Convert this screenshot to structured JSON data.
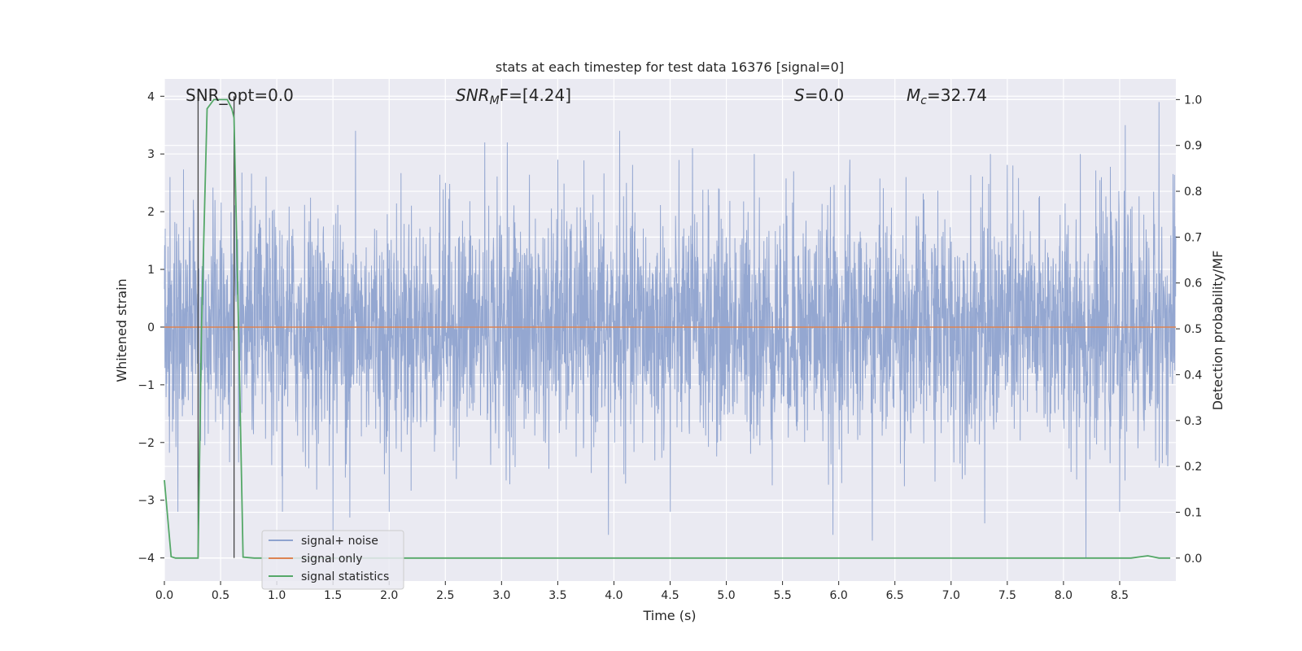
{
  "chart_data": {
    "type": "line",
    "title": "stats at each timestep for test data 16376 [signal=0]",
    "xlabel": "Time (s)",
    "ylabel_left": "Whitened strain",
    "ylabel_right": "Detection probability/MF",
    "xlim": [
      0.0,
      9.0
    ],
    "ylim_left": [
      -4.4,
      4.3
    ],
    "ylim_right": [
      -0.05,
      1.045
    ],
    "x_ticks": [
      "0.0",
      "0.5",
      "1.0",
      "1.5",
      "2.0",
      "2.5",
      "3.0",
      "3.5",
      "4.0",
      "4.5",
      "5.0",
      "5.5",
      "6.0",
      "6.5",
      "7.0",
      "7.5",
      "8.0",
      "8.5"
    ],
    "y_ticks_left": [
      "4",
      "3",
      "2",
      "1",
      "0",
      "−1",
      "−2",
      "−3",
      "−4"
    ],
    "y_ticks_right": [
      "1.0",
      "0.9",
      "0.8",
      "0.7",
      "0.6",
      "0.5",
      "0.4",
      "0.3",
      "0.2",
      "0.1",
      "0.0"
    ],
    "grid": true,
    "legend_position": "lower-left",
    "annotations": {
      "snr_opt": "SNR_opt=0.0",
      "snr_mf_base": "SNR",
      "snr_mf_sub": "M",
      "snr_mf_rest": "F=[4.24]",
      "s_var": "S",
      "s_rest": "=0.0",
      "mc_base": "M",
      "mc_sub": "c",
      "mc_rest": "=32.74"
    },
    "markers_x": [
      0.3,
      0.62
    ],
    "series": [
      {
        "name": "signal+ noise",
        "color": "#8fa3cf",
        "description_values": "dense noise, typical envelope ±2.3, occasional peaks to 3.9 and troughs to -4.0",
        "peaks": [
          [
            0.05,
            2.6
          ],
          [
            0.3,
            2.3
          ],
          [
            0.45,
            2.2
          ],
          [
            1.5,
            3.0
          ],
          [
            1.7,
            3.4
          ],
          [
            2.5,
            2.5
          ],
          [
            2.85,
            3.2
          ],
          [
            3.05,
            3.2
          ],
          [
            3.5,
            2.9
          ],
          [
            4.05,
            3.4
          ],
          [
            4.7,
            3.1
          ],
          [
            5.25,
            3.0
          ],
          [
            5.6,
            2.7
          ],
          [
            6.1,
            2.9
          ],
          [
            6.6,
            2.6
          ],
          [
            7.35,
            3.0
          ],
          [
            7.55,
            2.8
          ],
          [
            8.15,
            3.0
          ],
          [
            8.55,
            3.5
          ],
          [
            8.85,
            3.9
          ]
        ],
        "troughs": [
          [
            0.12,
            -3.2
          ],
          [
            1.05,
            -3.2
          ],
          [
            1.5,
            -3.6
          ],
          [
            1.65,
            -3.3
          ],
          [
            2.0,
            -3.2
          ],
          [
            3.95,
            -3.6
          ],
          [
            4.5,
            -3.2
          ],
          [
            5.95,
            -3.6
          ],
          [
            6.3,
            -3.7
          ],
          [
            7.3,
            -3.4
          ],
          [
            8.2,
            -4.0
          ],
          [
            8.5,
            -3.2
          ]
        ]
      },
      {
        "name": "signal only",
        "color": "#dd8452",
        "x": [
          0.0,
          9.0
        ],
        "y": [
          0.0,
          0.0
        ]
      },
      {
        "name": "signal statistics",
        "color": "#55a868",
        "axis": "right",
        "x": [
          0.0,
          0.06,
          0.1,
          0.15,
          0.2,
          0.25,
          0.3,
          0.33,
          0.38,
          0.44,
          0.5,
          0.56,
          0.6,
          0.62,
          0.66,
          0.7,
          0.8,
          1.0,
          2.0,
          3.0,
          4.0,
          5.0,
          6.0,
          7.0,
          8.0,
          8.6,
          8.75,
          8.85,
          8.95
        ],
        "y": [
          0.17,
          0.003,
          0.0,
          0.0,
          0.0,
          0.0,
          0.0,
          0.5,
          0.98,
          1.0,
          1.0,
          1.0,
          0.98,
          0.96,
          0.5,
          0.002,
          0.0,
          0.0,
          0.0,
          0.0,
          0.0,
          0.0,
          0.0,
          0.0,
          0.0,
          0.0,
          0.005,
          0.0,
          0.0
        ]
      }
    ]
  }
}
